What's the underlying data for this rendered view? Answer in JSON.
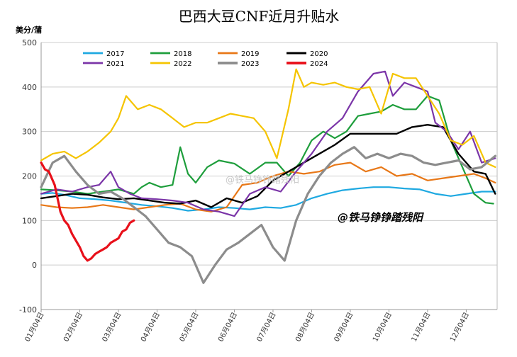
{
  "chart_data": {
    "type": "line",
    "title": "巴西大豆CNF近月升贴水",
    "ylabel": "美分/蒲",
    "xlabel": "",
    "ylim": [
      -100,
      500
    ],
    "yticks": [
      -100,
      0,
      100,
      200,
      300,
      400,
      500
    ],
    "x_categories": [
      "01月04日",
      "02月04日",
      "03月04日",
      "04月04日",
      "05月04日",
      "06月04日",
      "07月04日",
      "08月04日",
      "09月04日",
      "10月04日",
      "11月04日",
      "12月04日"
    ],
    "xlim_months": [
      0,
      11.8
    ],
    "grid": "horizontal",
    "legend_position": "top-left",
    "watermarks": [
      "@铁马铮铮踏残阳",
      "@铁马铮铮踏残阳"
    ],
    "series": [
      {
        "name": "2017",
        "color": "#1fa9e1",
        "width": 2.2,
        "x": [
          0,
          0.3,
          0.6,
          1.0,
          1.4,
          1.8,
          2.2,
          2.6,
          3.0,
          3.4,
          3.8,
          4.2,
          4.6,
          5.0,
          5.4,
          5.8,
          6.2,
          6.6,
          7.0,
          7.4,
          7.8,
          8.2,
          8.6,
          9.0,
          9.4,
          9.8,
          10.2,
          10.6,
          11.0,
          11.4,
          11.75
        ],
        "y": [
          160,
          162,
          158,
          150,
          148,
          145,
          140,
          135,
          132,
          128,
          122,
          125,
          130,
          128,
          125,
          130,
          128,
          135,
          150,
          160,
          168,
          172,
          175,
          175,
          172,
          170,
          160,
          155,
          160,
          165,
          165
        ]
      },
      {
        "name": "2018",
        "color": "#1e9e3c",
        "width": 2.2,
        "x": [
          0,
          0.4,
          0.8,
          1.2,
          1.6,
          2.0,
          2.4,
          2.6,
          2.8,
          3.1,
          3.4,
          3.6,
          3.8,
          4.0,
          4.3,
          4.6,
          5.0,
          5.4,
          5.8,
          6.1,
          6.4,
          6.7,
          7.0,
          7.3,
          7.6,
          7.9,
          8.2,
          8.5,
          8.8,
          9.1,
          9.4,
          9.7,
          10.0,
          10.3,
          10.6,
          10.9,
          11.2,
          11.5,
          11.7
        ],
        "y": [
          170,
          168,
          165,
          160,
          165,
          170,
          160,
          175,
          185,
          175,
          180,
          265,
          205,
          185,
          220,
          235,
          228,
          205,
          230,
          230,
          200,
          230,
          280,
          300,
          285,
          300,
          335,
          340,
          345,
          360,
          350,
          350,
          380,
          370,
          280,
          220,
          160,
          140,
          138
        ]
      },
      {
        "name": "2019",
        "color": "#e87818",
        "width": 2.2,
        "x": [
          0,
          0.4,
          0.8,
          1.2,
          1.6,
          2.0,
          2.4,
          2.8,
          3.2,
          3.6,
          4.0,
          4.4,
          4.8,
          5.2,
          5.6,
          6.0,
          6.4,
          6.8,
          7.2,
          7.6,
          8.0,
          8.4,
          8.8,
          9.2,
          9.6,
          10.0,
          10.4,
          10.8,
          11.2,
          11.5,
          11.75
        ],
        "y": [
          135,
          130,
          128,
          130,
          135,
          130,
          125,
          130,
          135,
          138,
          125,
          120,
          130,
          180,
          185,
          200,
          210,
          205,
          210,
          225,
          230,
          210,
          220,
          200,
          205,
          190,
          195,
          200,
          205,
          195,
          185
        ]
      },
      {
        "name": "2020",
        "color": "#000000",
        "width": 2.4,
        "x": [
          0,
          0.4,
          0.8,
          1.2,
          1.6,
          2.0,
          2.4,
          2.8,
          3.2,
          3.6,
          4.0,
          4.4,
          4.8,
          5.2,
          5.6,
          6.0,
          6.4,
          6.8,
          7.2,
          7.6,
          8.0,
          8.4,
          8.8,
          9.2,
          9.6,
          10.0,
          10.4,
          10.8,
          11.2,
          11.5,
          11.75
        ],
        "y": [
          150,
          155,
          160,
          158,
          152,
          148,
          150,
          145,
          140,
          138,
          145,
          130,
          150,
          140,
          155,
          190,
          210,
          230,
          250,
          270,
          295,
          295,
          295,
          295,
          310,
          315,
          310,
          250,
          210,
          205,
          160
        ]
      },
      {
        "name": "2021",
        "color": "#7b35a8",
        "width": 2.2,
        "x": [
          0,
          0.4,
          0.8,
          1.2,
          1.5,
          1.8,
          2.0,
          2.3,
          2.6,
          3.0,
          3.4,
          3.8,
          4.2,
          4.6,
          5.0,
          5.4,
          5.8,
          6.2,
          6.6,
          7.0,
          7.4,
          7.8,
          8.2,
          8.6,
          8.9,
          9.1,
          9.4,
          9.7,
          10.0,
          10.2,
          10.5,
          10.8,
          11.1,
          11.4,
          11.75
        ],
        "y": [
          160,
          170,
          165,
          175,
          180,
          210,
          175,
          160,
          150,
          148,
          145,
          140,
          125,
          120,
          110,
          160,
          175,
          165,
          210,
          250,
          300,
          330,
          390,
          430,
          435,
          380,
          410,
          400,
          390,
          320,
          300,
          260,
          300,
          230,
          240
        ]
      },
      {
        "name": "2022",
        "color": "#f5c400",
        "width": 2.2,
        "x": [
          0,
          0.3,
          0.6,
          0.9,
          1.2,
          1.5,
          1.8,
          2.0,
          2.2,
          2.5,
          2.8,
          3.1,
          3.4,
          3.7,
          4.0,
          4.3,
          4.6,
          4.9,
          5.2,
          5.5,
          5.8,
          6.1,
          6.4,
          6.6,
          6.8,
          7.0,
          7.3,
          7.6,
          7.9,
          8.2,
          8.5,
          8.8,
          9.1,
          9.4,
          9.7,
          10.0,
          10.3,
          10.6,
          10.9,
          11.2,
          11.5,
          11.75
        ],
        "y": [
          235,
          250,
          255,
          240,
          255,
          275,
          300,
          330,
          380,
          350,
          360,
          350,
          330,
          310,
          320,
          320,
          330,
          340,
          335,
          330,
          300,
          240,
          350,
          440,
          400,
          410,
          405,
          410,
          400,
          395,
          400,
          340,
          430,
          420,
          420,
          380,
          340,
          280,
          270,
          290,
          230,
          220
        ]
      },
      {
        "name": "2023",
        "color": "#8c8c8c",
        "width": 3.2,
        "x": [
          0,
          0.3,
          0.6,
          0.9,
          1.2,
          1.5,
          1.8,
          2.1,
          2.4,
          2.7,
          3.0,
          3.3,
          3.6,
          3.9,
          4.2,
          4.5,
          4.8,
          5.1,
          5.4,
          5.7,
          6.0,
          6.3,
          6.6,
          6.9,
          7.2,
          7.5,
          7.8,
          8.1,
          8.4,
          8.7,
          9.0,
          9.3,
          9.6,
          9.9,
          10.2,
          10.5,
          10.8,
          11.1,
          11.4,
          11.75
        ],
        "y": [
          175,
          230,
          245,
          210,
          180,
          160,
          165,
          150,
          130,
          110,
          80,
          50,
          40,
          20,
          -40,
          0,
          35,
          50,
          70,
          90,
          40,
          10,
          100,
          160,
          200,
          230,
          250,
          265,
          240,
          250,
          240,
          250,
          245,
          230,
          225,
          230,
          235,
          215,
          220,
          245
        ]
      },
      {
        "name": "2024",
        "color": "#e8101a",
        "width": 3.2,
        "x": [
          0,
          0.1,
          0.2,
          0.35,
          0.5,
          0.6,
          0.7,
          0.8,
          0.9,
          1.0,
          1.1,
          1.2,
          1.3,
          1.4,
          1.5,
          1.6,
          1.7,
          1.8,
          1.9,
          2.0,
          2.1,
          2.2,
          2.3,
          2.4
        ],
        "y": [
          230,
          215,
          210,
          180,
          120,
          100,
          90,
          70,
          55,
          40,
          20,
          10,
          15,
          25,
          30,
          35,
          40,
          50,
          55,
          60,
          75,
          80,
          95,
          100
        ]
      }
    ]
  }
}
